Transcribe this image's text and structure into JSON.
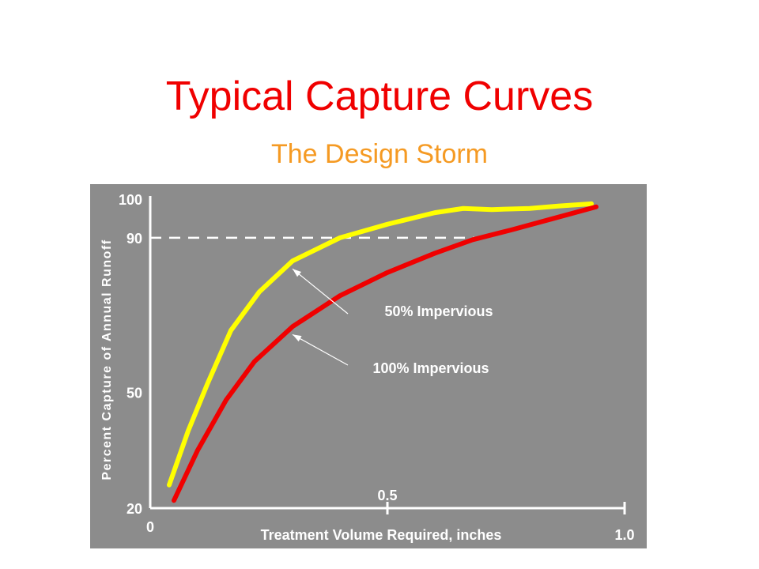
{
  "title": "Typical Capture Curves",
  "subtitle": "The Design Storm",
  "colors": {
    "title": "#f00000",
    "subtitle": "#f59a23",
    "panel": "#8c8c8c",
    "axis": "#ffffff"
  },
  "chart_data": {
    "type": "line",
    "xlabel": "Treatment  Volume Required, inches",
    "ylabel": "Percent Capture of Annual Runoff",
    "xlim": [
      0,
      1.0
    ],
    "ylim": [
      20,
      100
    ],
    "x_ticks": [
      {
        "value": 0,
        "label": "0"
      },
      {
        "value": 0.5,
        "label": "0.5"
      },
      {
        "value": 1.0,
        "label": "1.0"
      }
    ],
    "y_ticks": [
      {
        "value": 20,
        "label": "20"
      },
      {
        "value": 50,
        "label": "50"
      },
      {
        "value": 90,
        "label": "90"
      },
      {
        "value": 100,
        "label": "100"
      }
    ],
    "reference_line": {
      "y": 90,
      "x_end": 0.72,
      "style": "dashed"
    },
    "series": [
      {
        "name": "50% Impervious",
        "color": "#ffff00",
        "x": [
          0.04,
          0.08,
          0.12,
          0.17,
          0.23,
          0.3,
          0.4,
          0.5,
          0.6,
          0.66,
          0.72,
          0.8,
          0.86,
          0.93
        ],
        "y": [
          26,
          40,
          52,
          66,
          76,
          84,
          90,
          93.5,
          96.5,
          97.6,
          97.3,
          97.6,
          98.2,
          98.8
        ]
      },
      {
        "name": "100% Impervious",
        "color": "#f00000",
        "x": [
          0.05,
          0.1,
          0.16,
          0.22,
          0.3,
          0.4,
          0.5,
          0.6,
          0.68,
          0.76,
          0.85,
          0.94
        ],
        "y": [
          22,
          35,
          48,
          58,
          67,
          75,
          81,
          86,
          89.5,
          92,
          95,
          98
        ]
      }
    ],
    "annotations": [
      {
        "text": "50% Impervious",
        "series": "50% Impervious"
      },
      {
        "text": "100% Impervious",
        "series": "100% Impervious"
      }
    ],
    "grid": false,
    "legend": "none"
  }
}
